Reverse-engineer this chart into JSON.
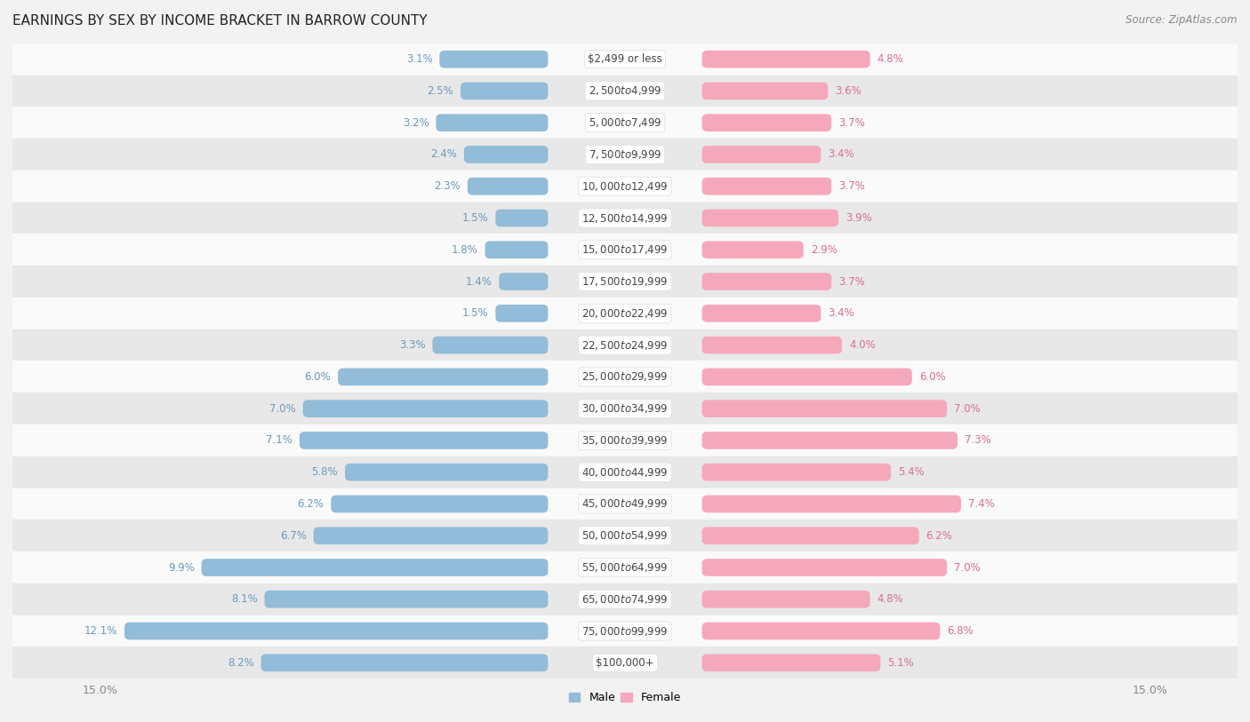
{
  "title": "EARNINGS BY SEX BY INCOME BRACKET IN BARROW COUNTY",
  "source": "Source: ZipAtlas.com",
  "categories": [
    "$2,499 or less",
    "$2,500 to $4,999",
    "$5,000 to $7,499",
    "$7,500 to $9,999",
    "$10,000 to $12,499",
    "$12,500 to $14,999",
    "$15,000 to $17,499",
    "$17,500 to $19,999",
    "$20,000 to $22,499",
    "$22,500 to $24,999",
    "$25,000 to $29,999",
    "$30,000 to $34,999",
    "$35,000 to $39,999",
    "$40,000 to $44,999",
    "$45,000 to $49,999",
    "$50,000 to $54,999",
    "$55,000 to $64,999",
    "$65,000 to $74,999",
    "$75,000 to $99,999",
    "$100,000+"
  ],
  "male_values": [
    3.1,
    2.5,
    3.2,
    2.4,
    2.3,
    1.5,
    1.8,
    1.4,
    1.5,
    3.3,
    6.0,
    7.0,
    7.1,
    5.8,
    6.2,
    6.7,
    9.9,
    8.1,
    12.1,
    8.2
  ],
  "female_values": [
    4.8,
    3.6,
    3.7,
    3.4,
    3.7,
    3.9,
    2.9,
    3.7,
    3.4,
    4.0,
    6.0,
    7.0,
    7.3,
    5.4,
    7.4,
    6.2,
    7.0,
    4.8,
    6.8,
    5.1
  ],
  "male_color": "#92bcd8",
  "female_color": "#f5a8bc",
  "male_label_color": "#6a9abf",
  "female_label_color": "#d97090",
  "background_color": "#f2f2f2",
  "row_bg_even": "#fafafa",
  "row_bg_odd": "#e8e8e8",
  "label_box_color": "#ffffff",
  "label_box_edge": "#dddddd",
  "axis_label_color": "#888888",
  "title_color": "#222222",
  "xmin": -15.0,
  "xmax": 15.0,
  "bar_height": 0.55,
  "bar_rounding": 0.15
}
